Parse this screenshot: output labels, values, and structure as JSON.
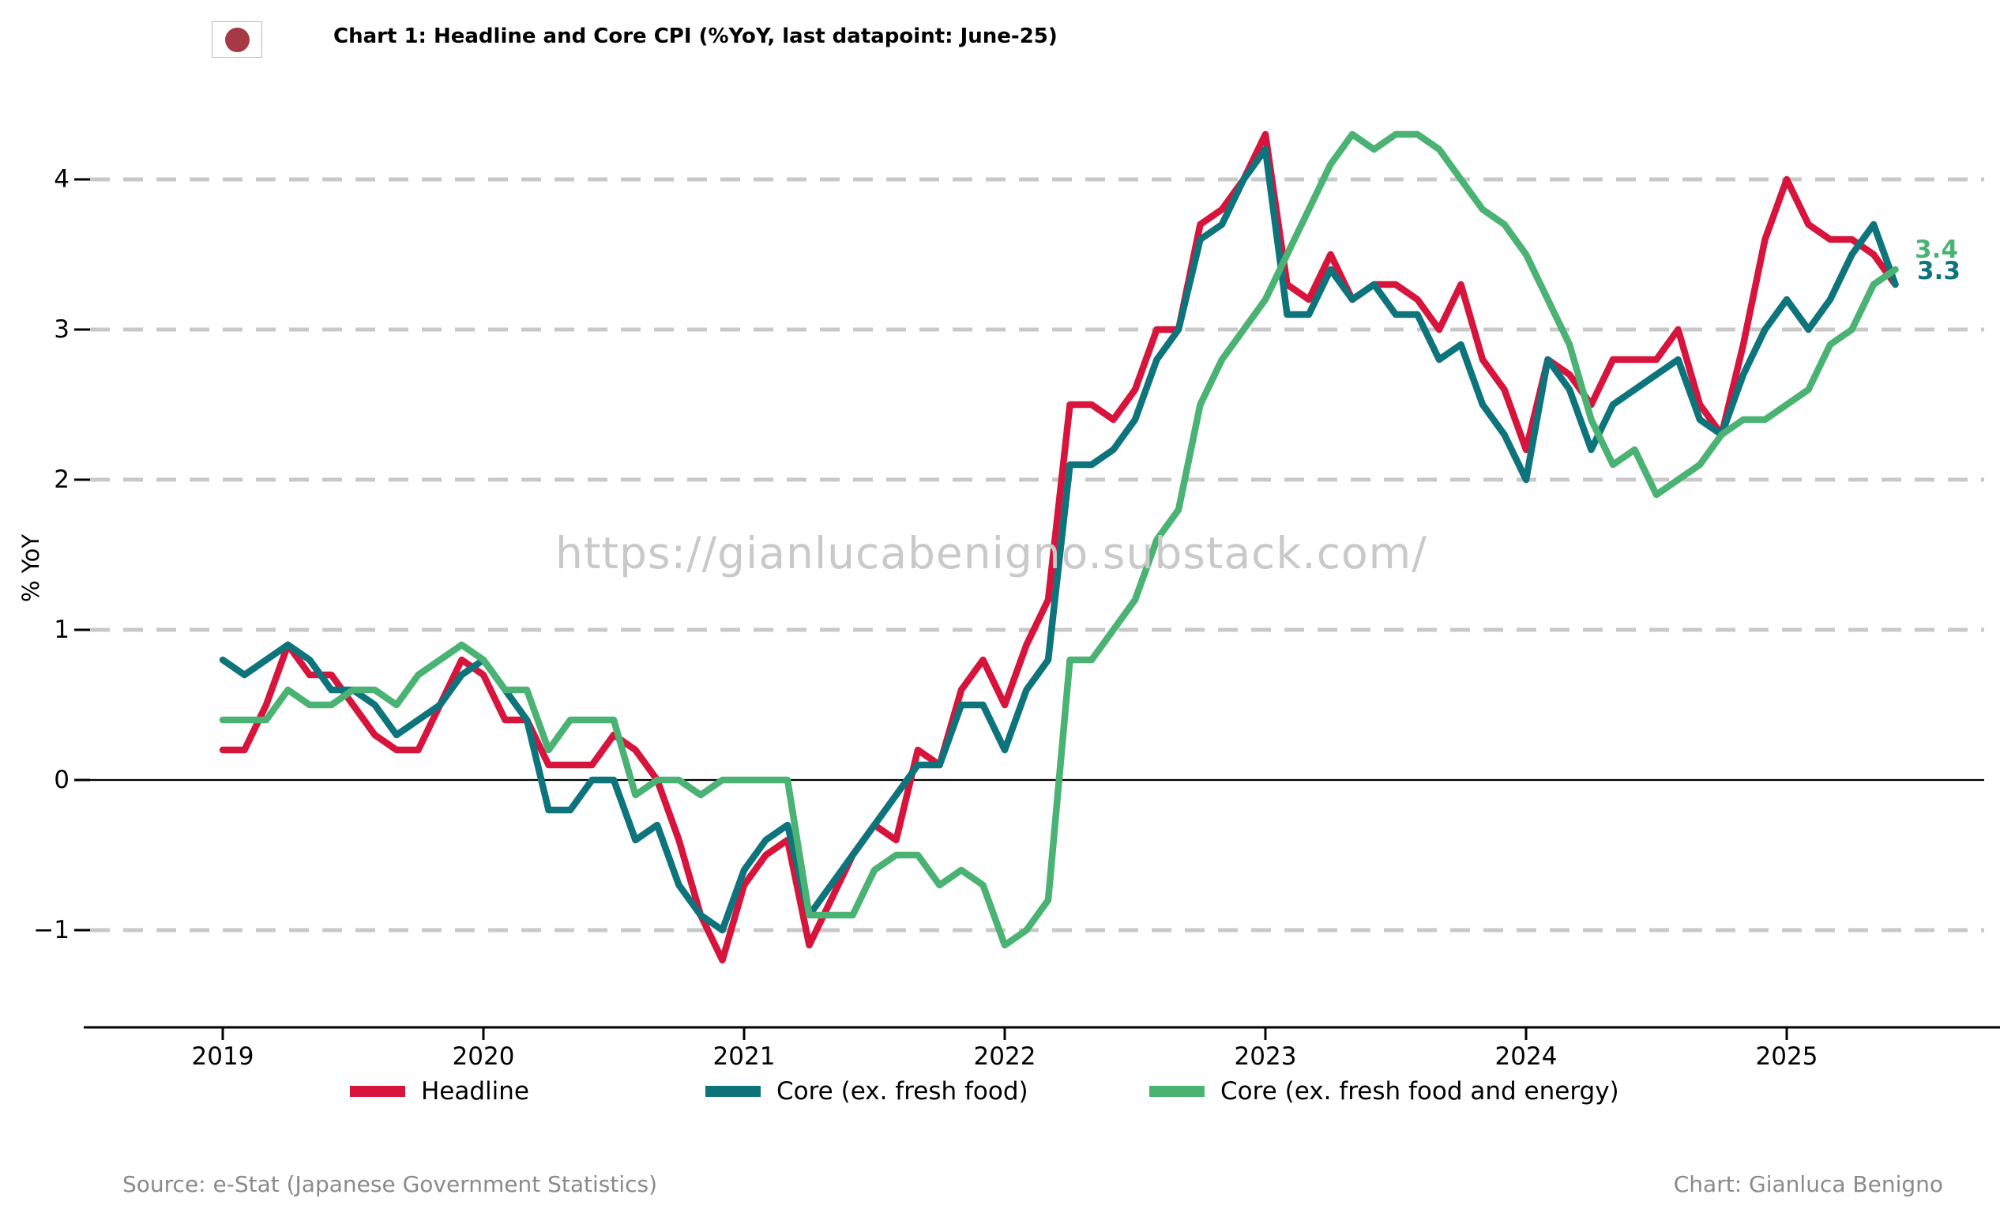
{
  "header": {
    "title": "Chart 1: Headline and Core CPI (%YoY, last datapoint: June-25)",
    "flag_icon": "japan-flag-icon"
  },
  "watermark": "https://gianlucabenigno.substack.com/",
  "axes": {
    "ylabel": "% YoY",
    "ytick_labels": [
      "4",
      "3",
      "2",
      "1",
      "0",
      "−1"
    ],
    "yticks": [
      4,
      3,
      2,
      1,
      0,
      -1
    ],
    "xtick_labels": [
      "2019",
      "2020",
      "2021",
      "2022",
      "2023",
      "2024",
      "2025"
    ],
    "xtick_months": [
      0,
      12,
      24,
      36,
      48,
      60,
      72
    ]
  },
  "legend": [
    {
      "label": "Headline",
      "color": "#d7143c"
    },
    {
      "label": "Core (ex. fresh food)",
      "color": "#0e747c"
    },
    {
      "label": "Core (ex. fresh food and energy)",
      "color": "#4ab374"
    }
  ],
  "end_labels": [
    {
      "text": "3.4",
      "color": "#4ab374"
    },
    {
      "text": "3.3",
      "color": "#0e747c"
    }
  ],
  "footer": {
    "source": "Source: e-Stat (Japanese Government Statistics)",
    "credit": "Chart: Gianluca Benigno"
  },
  "colors": {
    "grid": "#c8c8c8",
    "axis": "#000000",
    "watermark": "#c9c9c9"
  },
  "chart_data": {
    "type": "line",
    "title": "Chart 1: Headline and Core CPI (%YoY, last datapoint: June-25)",
    "xlabel": "",
    "ylabel": "% YoY",
    "x_start": "2019-01",
    "x_end": "2025-06",
    "x_frequency": "monthly",
    "ylim": [
      -1.5,
      4.45
    ],
    "grid": "horizontal dashed, solid line at 0",
    "legend_position": "bottom",
    "series": [
      {
        "name": "Headline",
        "color": "#d7143c",
        "values": [
          0.2,
          0.2,
          0.5,
          0.9,
          0.7,
          0.7,
          0.5,
          0.3,
          0.2,
          0.2,
          0.5,
          0.8,
          0.7,
          0.4,
          0.4,
          0.1,
          0.1,
          0.1,
          0.3,
          0.2,
          0.0,
          -0.4,
          -0.9,
          -1.2,
          -0.7,
          -0.5,
          -0.4,
          -1.1,
          -0.8,
          -0.5,
          -0.3,
          -0.4,
          0.2,
          0.1,
          0.6,
          0.8,
          0.5,
          0.9,
          1.2,
          2.5,
          2.5,
          2.4,
          2.6,
          3.0,
          3.0,
          3.7,
          3.8,
          4.0,
          4.3,
          3.3,
          3.2,
          3.5,
          3.2,
          3.3,
          3.3,
          3.2,
          3.0,
          3.3,
          2.8,
          2.6,
          2.2,
          2.8,
          2.7,
          2.5,
          2.8,
          2.8,
          2.8,
          3.0,
          2.5,
          2.3,
          2.9,
          3.6,
          4.0,
          3.7,
          3.6,
          3.6,
          3.5,
          3.3
        ]
      },
      {
        "name": "Core (ex. fresh food)",
        "color": "#0e747c",
        "values": [
          0.8,
          0.7,
          0.8,
          0.9,
          0.8,
          0.6,
          0.6,
          0.5,
          0.3,
          0.4,
          0.5,
          0.7,
          0.8,
          0.6,
          0.4,
          -0.2,
          -0.2,
          0.0,
          0.0,
          -0.4,
          -0.3,
          -0.7,
          -0.9,
          -1.0,
          -0.6,
          -0.4,
          -0.3,
          -0.9,
          -0.7,
          -0.5,
          -0.3,
          -0.1,
          0.1,
          0.1,
          0.5,
          0.5,
          0.2,
          0.6,
          0.8,
          2.1,
          2.1,
          2.2,
          2.4,
          2.8,
          3.0,
          3.6,
          3.7,
          4.0,
          4.2,
          3.1,
          3.1,
          3.4,
          3.2,
          3.3,
          3.1,
          3.1,
          2.8,
          2.9,
          2.5,
          2.3,
          2.0,
          2.8,
          2.6,
          2.2,
          2.5,
          2.6,
          2.7,
          2.8,
          2.4,
          2.3,
          2.7,
          3.0,
          3.2,
          3.0,
          3.2,
          3.5,
          3.7,
          3.3
        ]
      },
      {
        "name": "Core (ex. fresh food and energy)",
        "color": "#4ab374",
        "values": [
          0.4,
          0.4,
          0.4,
          0.6,
          0.5,
          0.5,
          0.6,
          0.6,
          0.5,
          0.7,
          0.8,
          0.9,
          0.8,
          0.6,
          0.6,
          0.2,
          0.4,
          0.4,
          0.4,
          -0.1,
          0.0,
          0.0,
          -0.1,
          0.0,
          0.0,
          0.0,
          0.0,
          -0.9,
          -0.9,
          -0.9,
          -0.6,
          -0.5,
          -0.5,
          -0.7,
          -0.6,
          -0.7,
          -1.1,
          -1.0,
          -0.8,
          0.8,
          0.8,
          1.0,
          1.2,
          1.6,
          1.8,
          2.5,
          2.8,
          3.0,
          3.2,
          3.5,
          3.8,
          4.1,
          4.3,
          4.2,
          4.3,
          4.3,
          4.2,
          4.0,
          3.8,
          3.7,
          3.5,
          3.2,
          2.9,
          2.4,
          2.1,
          2.2,
          1.9,
          2.0,
          2.1,
          2.3,
          2.4,
          2.4,
          2.5,
          2.6,
          2.9,
          3.0,
          3.3,
          3.4
        ]
      }
    ]
  }
}
